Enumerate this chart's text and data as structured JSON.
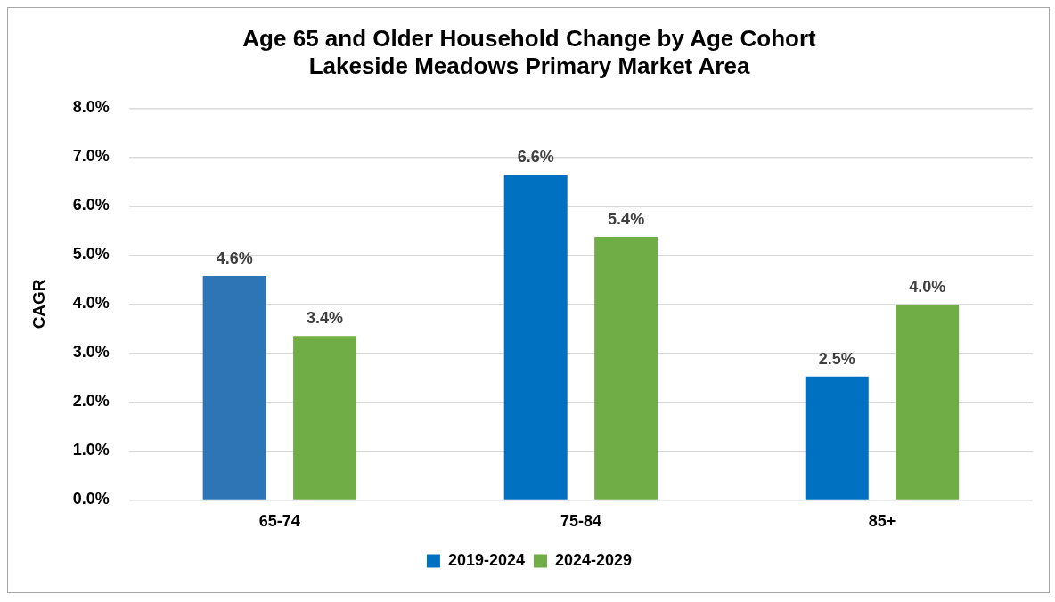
{
  "chart_data": {
    "type": "bar",
    "title": [
      "Age 65 and Older Household Change by Age Cohort",
      "Lakeside Meadows Primary Market Area"
    ],
    "ylabel": "CAGR",
    "categories": [
      "65-74",
      "75-84",
      "85+"
    ],
    "series": [
      {
        "name": "2019-2024",
        "color": "#0070c0",
        "colors": [
          "#2e75b6",
          "#0070c0",
          "#0070c0"
        ],
        "values": [
          4.57,
          6.64,
          2.52
        ],
        "value_labels": [
          "4.6%",
          "6.6%",
          "2.5%"
        ]
      },
      {
        "name": "2024-2029",
        "color": "#70ad47",
        "values": [
          3.35,
          5.37,
          3.98
        ],
        "value_labels": [
          "3.4%",
          "5.4%",
          "4.0%"
        ]
      }
    ],
    "ylim": [
      0,
      8
    ],
    "yticks": [
      {
        "value": 0,
        "label": "0.0%"
      },
      {
        "value": 1,
        "label": "1.0%"
      },
      {
        "value": 2,
        "label": "2.0%"
      },
      {
        "value": 3,
        "label": "3.0%"
      },
      {
        "value": 4,
        "label": "4.0%"
      },
      {
        "value": 5,
        "label": "5.0%"
      },
      {
        "value": 6,
        "label": "6.0%"
      },
      {
        "value": 7,
        "label": "7.0%"
      },
      {
        "value": 8,
        "label": "8.0%"
      }
    ],
    "grid": "y",
    "legend": "bottom"
  }
}
